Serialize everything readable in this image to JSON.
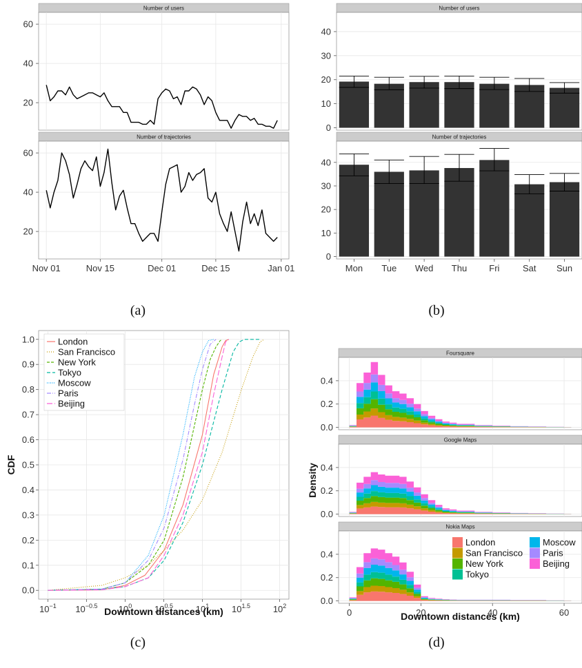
{
  "panel_captions": [
    "(a)",
    "(b)",
    "(c)",
    "(d)"
  ],
  "chart_data": [
    {
      "panel": "(a)",
      "type": "line",
      "facets": [
        {
          "title": "Number of users",
          "ylim": [
            6,
            66
          ],
          "yticks": [
            20,
            40,
            60
          ],
          "x_days": [
            0,
            1,
            2,
            3,
            4,
            5,
            6,
            7,
            8,
            9,
            10,
            11,
            12,
            13,
            14,
            15,
            16,
            17,
            18,
            19,
            20,
            21,
            22,
            23,
            24,
            25,
            26,
            27,
            28,
            29,
            30,
            31,
            32,
            33,
            34,
            35,
            36,
            37,
            38,
            39,
            40,
            41,
            42,
            43,
            44,
            45,
            46,
            47,
            48,
            49,
            50,
            51,
            52,
            53,
            54,
            55,
            56,
            57,
            58,
            59,
            60
          ],
          "values": [
            29,
            21,
            23,
            26,
            26,
            24,
            28,
            24,
            22,
            23,
            24,
            25,
            25,
            24,
            23,
            25,
            21,
            18,
            18,
            18,
            15,
            15,
            10,
            10,
            10,
            9,
            9,
            11,
            9,
            22,
            25,
            27,
            26,
            22,
            23,
            19,
            26,
            26,
            28,
            27,
            24,
            19,
            23,
            21,
            15,
            11,
            11,
            11,
            7,
            11,
            14,
            13,
            13,
            11,
            12,
            9,
            9,
            8,
            8,
            7,
            11
          ]
        },
        {
          "title": "Number of trajectories",
          "ylim": [
            6,
            66
          ],
          "yticks": [
            20,
            40,
            60
          ],
          "x_days": [
            0,
            1,
            2,
            3,
            4,
            5,
            6,
            7,
            8,
            9,
            10,
            11,
            12,
            13,
            14,
            15,
            16,
            17,
            18,
            19,
            20,
            21,
            22,
            23,
            24,
            25,
            26,
            27,
            28,
            29,
            30,
            31,
            32,
            33,
            34,
            35,
            36,
            37,
            38,
            39,
            40,
            41,
            42,
            43,
            44,
            45,
            46,
            47,
            48,
            49,
            50,
            51,
            52,
            53,
            54,
            55,
            56,
            57,
            58,
            59,
            60
          ],
          "values": [
            41,
            32,
            40,
            46,
            60,
            56,
            49,
            37,
            44,
            52,
            56,
            53,
            51,
            58,
            43,
            50,
            62,
            45,
            31,
            38,
            41,
            32,
            24,
            24,
            19,
            15,
            17,
            19,
            19,
            15,
            30,
            44,
            52,
            53,
            54,
            40,
            43,
            50,
            46,
            49,
            50,
            52,
            37,
            35,
            40,
            29,
            24,
            20,
            30,
            20,
            10,
            25,
            35,
            24,
            29,
            23,
            31,
            19,
            17,
            15,
            17
          ]
        }
      ],
      "xtick_labels": [
        "Nov 01",
        "Nov 15",
        "Dec 01",
        "Dec 15",
        "Jan 01"
      ],
      "xtick_days": [
        0,
        14,
        30,
        44,
        61
      ]
    },
    {
      "panel": "(b)",
      "type": "bar",
      "categories": [
        "Mon",
        "Tue",
        "Wed",
        "Thu",
        "Fri",
        "Sat",
        "Sun"
      ],
      "facets": [
        {
          "title": "Number of users",
          "ylim": [
            -1,
            48
          ],
          "yticks": [
            0,
            10,
            20,
            30,
            40
          ],
          "values": [
            19.2,
            18.3,
            19.0,
            19.0,
            18.3,
            17.8,
            16.6
          ],
          "err_low": [
            16.8,
            15.8,
            16.5,
            16.3,
            15.9,
            15.1,
            14.4
          ],
          "err_high": [
            21.5,
            21.0,
            21.4,
            21.5,
            21.0,
            20.5,
            18.8
          ]
        },
        {
          "title": "Number of trajectories",
          "ylim": [
            -1,
            49
          ],
          "yticks": [
            0,
            10,
            20,
            30,
            40
          ],
          "values": [
            39.0,
            36.0,
            36.6,
            37.6,
            41.0,
            30.7,
            31.6
          ],
          "err_low": [
            34.3,
            31.0,
            31.0,
            32.0,
            36.4,
            26.6,
            27.8
          ],
          "err_high": [
            43.6,
            41.0,
            42.5,
            43.4,
            45.9,
            34.8,
            35.3
          ]
        }
      ]
    },
    {
      "panel": "(c)",
      "type": "line",
      "xlabel": "Downtown distances (km)",
      "ylabel": "CDF",
      "x_scale": "log10",
      "xlim": [
        0.1,
        100
      ],
      "ylim": [
        0,
        1
      ],
      "xtick_labels": [
        {
          "base": "10",
          "exp": "−1"
        },
        {
          "base": "10",
          "exp": "−0.5"
        },
        {
          "base": "10",
          "exp": "0"
        },
        {
          "base": "10",
          "exp": "0.5"
        },
        {
          "base": "10",
          "exp": "1"
        },
        {
          "base": "10",
          "exp": "1.5"
        },
        {
          "base": "10",
          "exp": "2"
        }
      ],
      "ytick_labels": [
        "0.0",
        "0.1",
        "0.2",
        "0.3",
        "0.4",
        "0.5",
        "0.6",
        "0.7",
        "0.8",
        "0.9",
        "1.0"
      ],
      "legend_placement": "top-left",
      "series": [
        {
          "name": "London",
          "color": "#f8766d",
          "dash": "",
          "x": [
            0.1,
            0.5,
            1,
            1.8,
            3.2,
            5.6,
            10,
            14,
            18,
            20,
            22
          ],
          "y": [
            0,
            0.002,
            0.02,
            0.06,
            0.16,
            0.34,
            0.62,
            0.86,
            0.97,
            0.995,
            1
          ]
        },
        {
          "name": "San Francisco",
          "color": "#c49a00",
          "dash": "1,2",
          "x": [
            0.1,
            0.5,
            1,
            2,
            3.2,
            5.6,
            10,
            18,
            32,
            45,
            56,
            63
          ],
          "y": [
            0,
            0.02,
            0.05,
            0.1,
            0.16,
            0.24,
            0.36,
            0.55,
            0.8,
            0.93,
            0.99,
            1
          ]
        },
        {
          "name": "New York",
          "color": "#53b400",
          "dash": "4,2",
          "x": [
            0.1,
            0.5,
            1,
            2,
            3.2,
            5.6,
            10,
            12.6,
            15,
            17,
            18
          ],
          "y": [
            0,
            0.005,
            0.03,
            0.1,
            0.2,
            0.45,
            0.8,
            0.92,
            0.97,
            0.995,
            1
          ]
        },
        {
          "name": "Tokyo",
          "color": "#00b6a1",
          "dash": "5,3",
          "x": [
            0.1,
            0.5,
            1,
            2,
            3.2,
            5.6,
            10,
            18,
            25,
            30,
            35,
            56
          ],
          "y": [
            0,
            0.004,
            0.015,
            0.05,
            0.12,
            0.27,
            0.5,
            0.8,
            0.95,
            0.99,
            1,
            1
          ]
        },
        {
          "name": "Moscow",
          "color": "#00a5ff",
          "dash": "1,1.5",
          "x": [
            0.1,
            0.5,
            1,
            2,
            3.2,
            5.6,
            7.9,
            10,
            12,
            14
          ],
          "y": [
            0,
            0.005,
            0.03,
            0.14,
            0.3,
            0.62,
            0.85,
            0.95,
            0.995,
            1
          ]
        },
        {
          "name": "Paris",
          "color": "#a58aff",
          "dash": "6,2,1,2",
          "x": [
            0.1,
            0.5,
            1,
            2,
            3.2,
            5.6,
            7.9,
            10,
            12.6,
            15
          ],
          "y": [
            0,
            0.005,
            0.03,
            0.12,
            0.25,
            0.52,
            0.74,
            0.88,
            0.98,
            1
          ]
        },
        {
          "name": "Beijing",
          "color": "#fb61d7",
          "dash": "8,3",
          "x": [
            0.1,
            0.5,
            1,
            2,
            3.2,
            5.6,
            10,
            14,
            18,
            20,
            22
          ],
          "y": [
            0,
            0.002,
            0.015,
            0.05,
            0.14,
            0.3,
            0.55,
            0.78,
            0.93,
            0.99,
            1
          ]
        }
      ]
    },
    {
      "panel": "(d)",
      "type": "area",
      "xlabel": "Downtown distances (km)",
      "ylabel": "Density",
      "xlim": [
        -3,
        65
      ],
      "xticks": [
        0,
        20,
        40,
        60
      ],
      "yticks": [
        0.0,
        0.2,
        0.4
      ],
      "legend_placement": "inside bottom facet, top-right",
      "series_order": [
        "London",
        "San Francisco",
        "New York",
        "Tokyo",
        "Moscow",
        "Paris",
        "Beijing"
      ],
      "colors": [
        "#f8766d",
        "#c49a00",
        "#53b400",
        "#00c094",
        "#00b6eb",
        "#a58aff",
        "#fb61d7"
      ],
      "facets": [
        {
          "title": "Foursquare",
          "ylim": [
            -0.02,
            0.6
          ],
          "x": [
            0,
            2,
            4,
            6,
            8,
            10,
            12,
            14,
            16,
            18,
            20,
            22,
            24,
            26,
            28,
            30,
            35,
            40,
            45,
            50,
            55,
            60
          ],
          "total": [
            0.02,
            0.38,
            0.47,
            0.56,
            0.45,
            0.36,
            0.31,
            0.29,
            0.25,
            0.2,
            0.14,
            0.1,
            0.07,
            0.05,
            0.04,
            0.03,
            0.02,
            0.015,
            0.01,
            0.008,
            0.005,
            0.003
          ]
        },
        {
          "title": "Google Maps",
          "ylim": [
            -0.02,
            0.6
          ],
          "x": [
            0,
            2,
            4,
            6,
            8,
            10,
            12,
            14,
            16,
            18,
            20,
            22,
            24,
            26,
            28,
            30,
            35,
            40,
            45,
            50,
            55,
            60
          ],
          "total": [
            0.02,
            0.27,
            0.32,
            0.36,
            0.34,
            0.33,
            0.33,
            0.32,
            0.28,
            0.23,
            0.17,
            0.12,
            0.08,
            0.05,
            0.04,
            0.03,
            0.02,
            0.015,
            0.01,
            0.008,
            0.005,
            0.003
          ]
        },
        {
          "title": "Nokia Maps",
          "ylim": [
            -0.02,
            0.6
          ],
          "x": [
            0,
            2,
            4,
            6,
            8,
            10,
            12,
            14,
            16,
            18,
            20,
            22,
            24,
            26,
            28,
            30,
            35,
            40,
            45,
            50,
            55,
            60
          ],
          "total": [
            0.03,
            0.29,
            0.41,
            0.45,
            0.44,
            0.41,
            0.38,
            0.33,
            0.25,
            0.14,
            0.04,
            0.025,
            0.02,
            0.015,
            0.012,
            0.01,
            0.01,
            0.01,
            0.008,
            0.008,
            0.005,
            0.003
          ]
        }
      ],
      "stack_fractions": [
        0.18,
        0.11,
        0.14,
        0.12,
        0.14,
        0.12,
        0.19
      ]
    }
  ]
}
